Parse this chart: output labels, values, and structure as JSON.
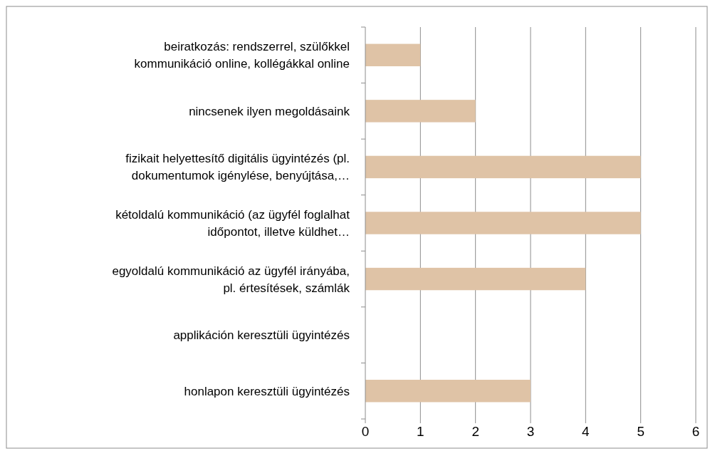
{
  "chart_data": {
    "type": "bar",
    "orientation": "horizontal",
    "categories": [
      "beiratkozás: rendszerrel, szülőkkel kommunikáció online, kollégákkal online",
      "nincsenek ilyen megoldásaink",
      "fizikait helyettesítő digitális ügyintézés (pl. dokumentumok igénylése, benyújtása,…",
      "kétoldalú kommunikáció (az ügyfél foglalhat időpontot, illetve küldhet…",
      "egyoldalú kommunikáció az ügyfél irányába, pl. értesítések, számlák",
      "applikáción keresztüli ügyintézés",
      "honlapon keresztüli ügyintézés"
    ],
    "values": [
      1,
      2,
      5,
      5,
      4,
      0,
      3
    ],
    "color": "#dfc3a6",
    "xlim": [
      0,
      6
    ],
    "xticks": [
      0,
      1,
      2,
      3,
      4,
      5,
      6
    ],
    "grid": "x"
  }
}
